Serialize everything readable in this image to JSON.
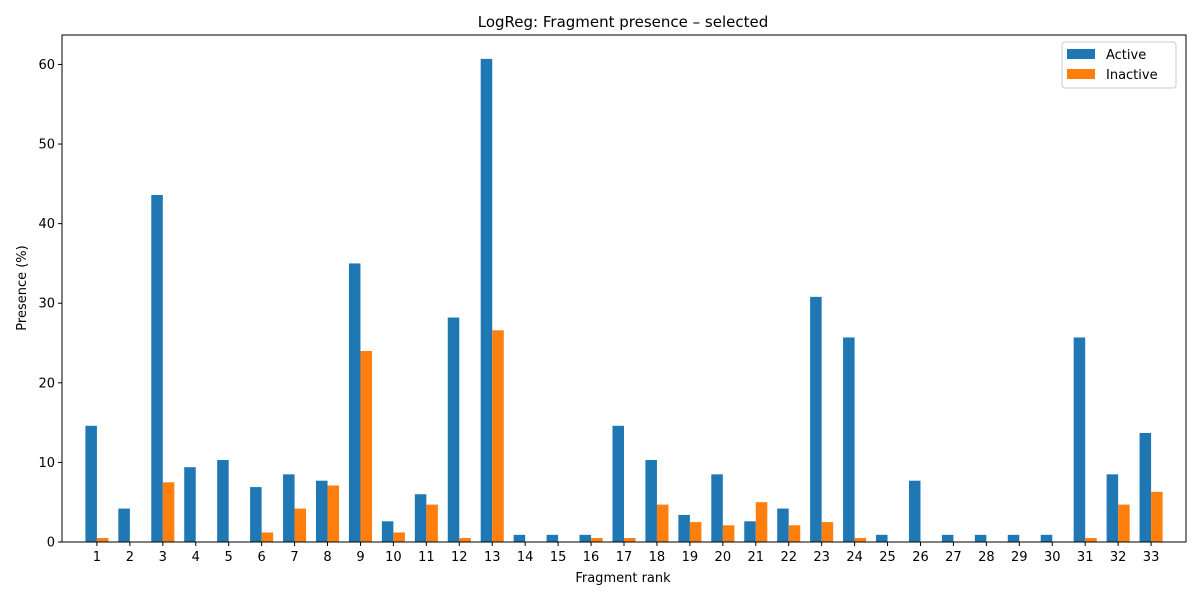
{
  "chart_data": {
    "type": "bar",
    "title": "LogReg: Fragment presence – selected",
    "xlabel": "Fragment rank",
    "ylabel": "Presence (%)",
    "ylim": [
      0,
      63.7
    ],
    "yticks": [
      0,
      10,
      20,
      30,
      40,
      50,
      60
    ],
    "categories": [
      "1",
      "2",
      "3",
      "4",
      "5",
      "6",
      "7",
      "8",
      "9",
      "10",
      "11",
      "12",
      "13",
      "14",
      "15",
      "16",
      "17",
      "18",
      "19",
      "20",
      "21",
      "22",
      "23",
      "24",
      "25",
      "26",
      "27",
      "28",
      "29",
      "30",
      "31",
      "32",
      "33"
    ],
    "series": [
      {
        "name": "Active",
        "color": "#1f77b4",
        "values": [
          14.6,
          4.2,
          43.6,
          9.4,
          10.3,
          6.9,
          8.5,
          7.7,
          35.0,
          2.6,
          6.0,
          28.2,
          60.7,
          0.9,
          0.9,
          0.9,
          14.6,
          10.3,
          3.4,
          8.5,
          2.6,
          4.2,
          30.8,
          25.7,
          0.9,
          7.7,
          0.9,
          0.9,
          0.9,
          0.9,
          25.7,
          8.5,
          13.7
        ]
      },
      {
        "name": "Inactive",
        "color": "#ff7f0e",
        "values": [
          0.5,
          0.0,
          7.5,
          0.0,
          0.0,
          1.2,
          4.2,
          7.1,
          24.0,
          1.2,
          4.7,
          0.5,
          26.6,
          0.0,
          0.0,
          0.5,
          0.5,
          4.7,
          2.5,
          2.1,
          5.0,
          2.1,
          2.5,
          0.5,
          0.0,
          0.0,
          0.0,
          0.0,
          0.0,
          0.0,
          0.5,
          4.7,
          6.3
        ]
      }
    ],
    "legend": {
      "placement": "top-right"
    },
    "grid": false
  }
}
